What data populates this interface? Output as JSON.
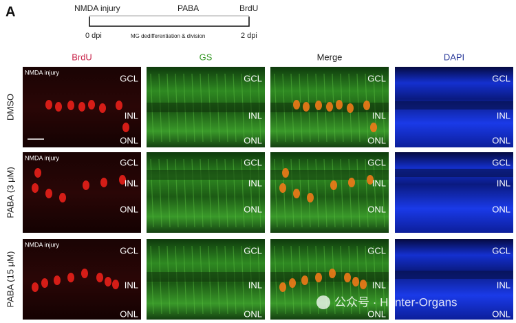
{
  "figure": {
    "panel_label": "A",
    "timeline": {
      "start_event": "NMDA injury",
      "treatment": "PABA",
      "end_event": "BrdU",
      "start_time": "0 dpi",
      "process": "MG dedifferentiation & division",
      "end_time": "2 dpi"
    },
    "columns": [
      "BrdU",
      "GS",
      "Merge",
      "DAPI"
    ],
    "rows": [
      {
        "label": "DMSO",
        "note": "NMDA injury",
        "panels": [
          [
            "GCL",
            "INL",
            "ONL"
          ],
          [
            "GCL",
            "INL",
            "ONL"
          ],
          [
            "GCL",
            "INL",
            "ONL"
          ],
          [
            "GCL",
            "INL",
            "ONL"
          ]
        ]
      },
      {
        "label": "PABA (3 μM)",
        "note": "NMDA injury",
        "panels": [
          [
            "GCL",
            "INL",
            "ONL"
          ],
          [
            "GCL",
            "INL",
            "ONL"
          ],
          [
            "GCL",
            "INL",
            "ONL"
          ],
          [
            "GCL",
            "INL",
            "ONL"
          ]
        ]
      },
      {
        "label": "PABA (15 μM)",
        "note": "NMDA injury",
        "panels": [
          [
            "GCL",
            "INL",
            "ONL"
          ],
          [
            "GCL",
            "INL",
            "ONL"
          ],
          [
            "GCL",
            "INL",
            "ONL"
          ],
          [
            "GCL",
            "INL",
            "ONL"
          ]
        ]
      }
    ],
    "watermark": "公众号 · Hunter-Organs"
  }
}
